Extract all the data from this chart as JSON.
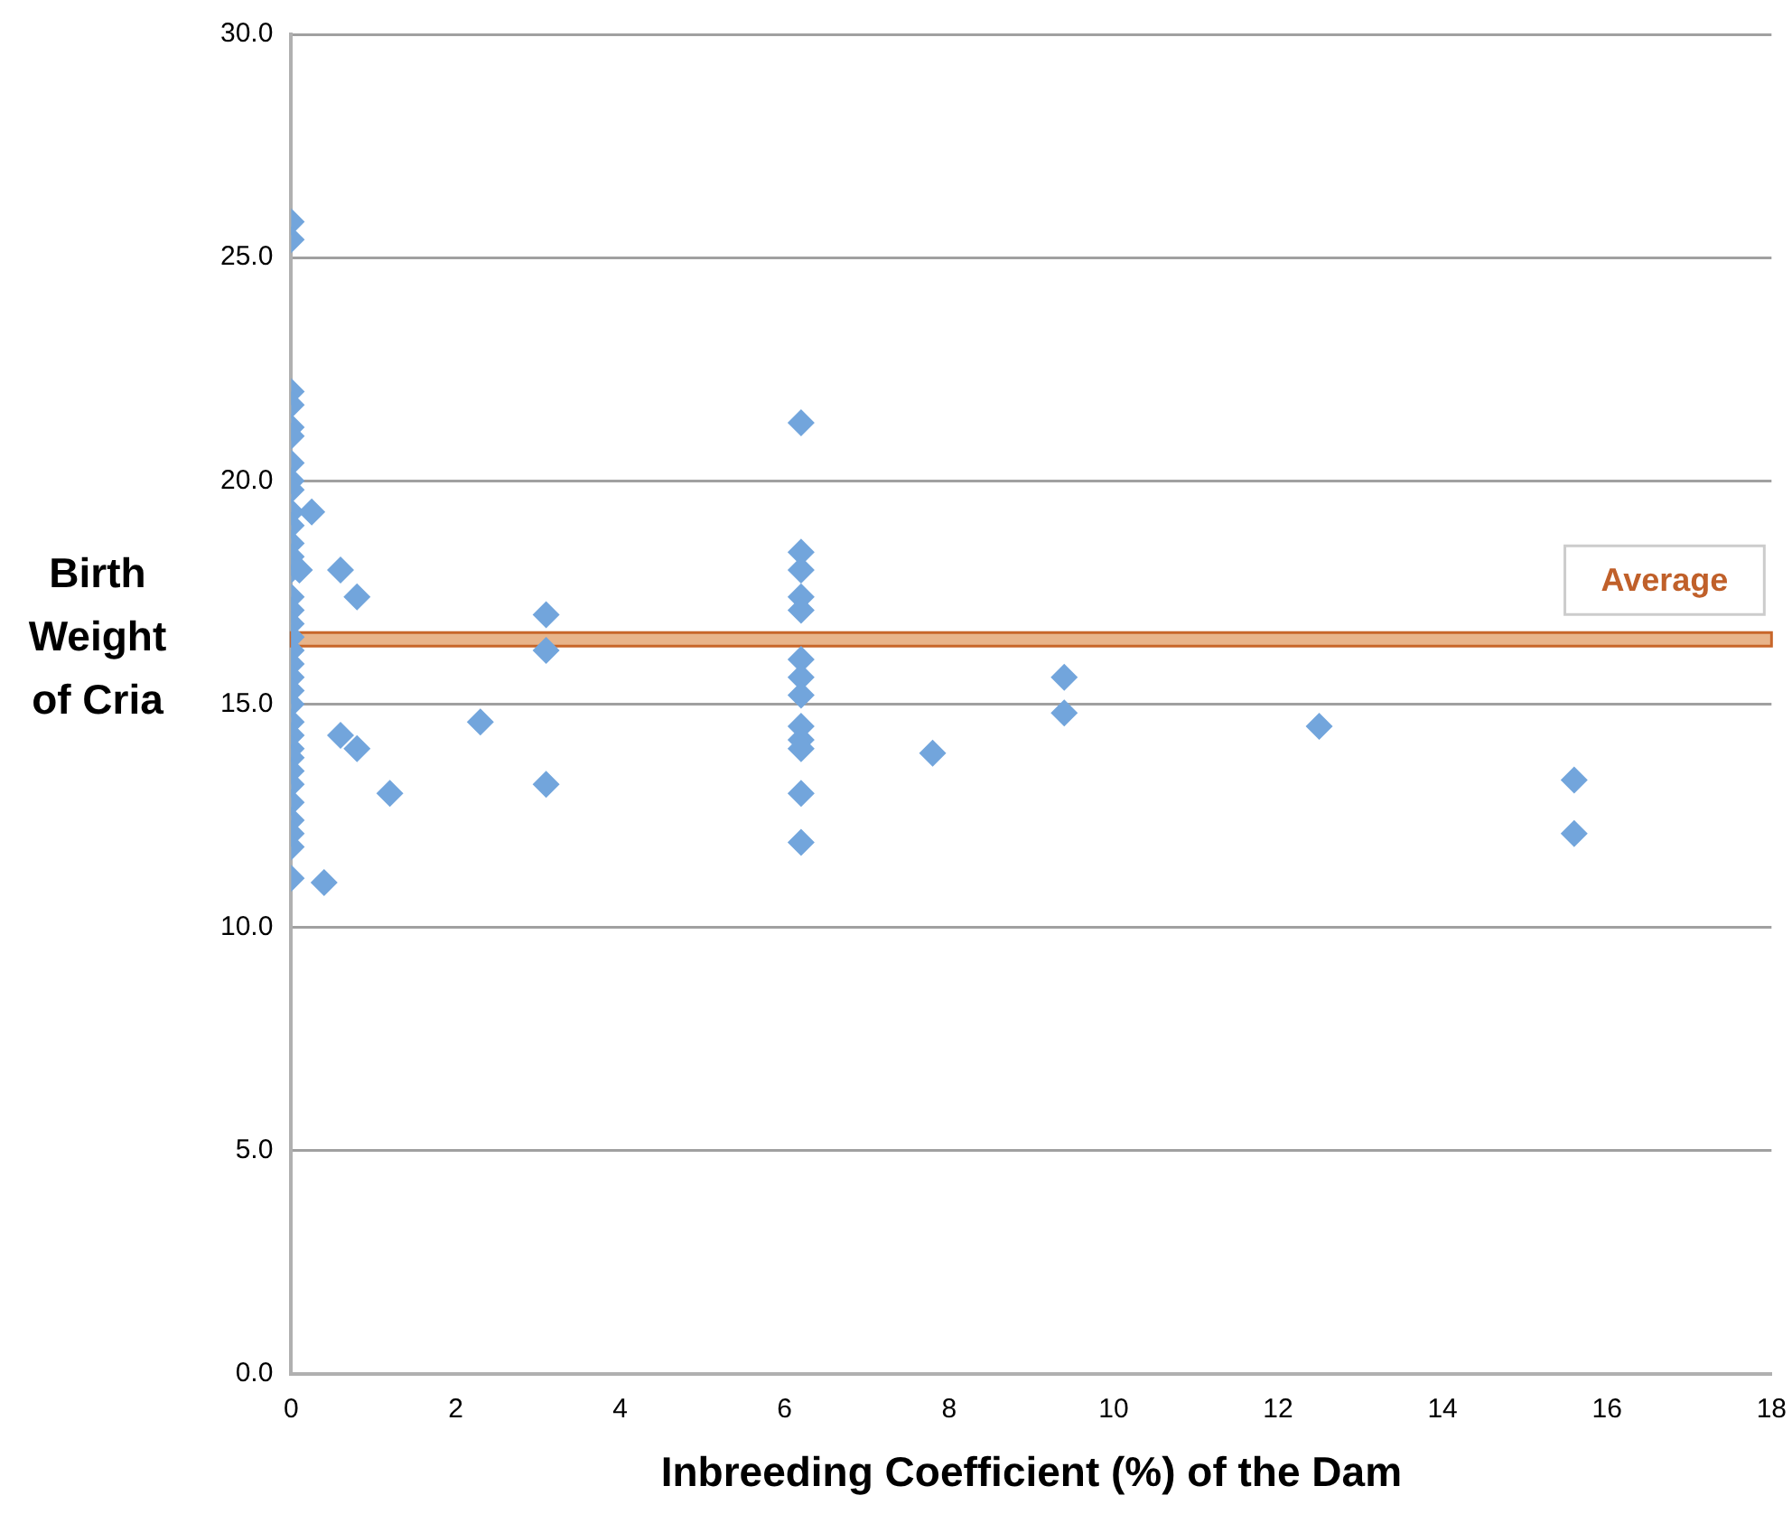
{
  "chart_data": {
    "type": "scatter",
    "xlabel": "Inbreeding Coefficient (%) of the Dam",
    "ylabel": "Birth Weight of Cria",
    "xlim": [
      0,
      18
    ],
    "xticks": [
      0,
      2,
      4,
      6,
      8,
      10,
      12,
      14,
      16,
      18
    ],
    "ylim": [
      0,
      30
    ],
    "yticks": [
      {
        "value": 0,
        "label": "0.0"
      },
      {
        "value": 5,
        "label": "5.0"
      },
      {
        "value": 10,
        "label": "10.0"
      },
      {
        "value": 15,
        "label": "15.0"
      },
      {
        "value": 20,
        "label": "20.0"
      },
      {
        "value": 25,
        "label": "25.0"
      },
      {
        "value": 30,
        "label": "30.0"
      }
    ],
    "grid": "y",
    "marker": "diamond",
    "legend": false,
    "series": [
      {
        "color": "#72a5dc",
        "x": [
          0,
          0,
          0,
          0,
          0,
          0,
          0,
          0,
          0,
          0,
          0,
          0,
          0,
          0,
          0,
          0,
          0,
          0,
          0,
          0,
          0,
          0,
          0,
          0,
          0,
          0,
          0,
          0,
          0,
          0,
          0,
          0,
          0,
          0,
          0.1,
          0.25,
          0.6,
          0.8,
          0.6,
          0.8,
          1.2,
          0.4,
          2.3,
          3.1,
          3.1,
          3.1,
          6.2,
          6.2,
          6.2,
          6.2,
          6.2,
          6.2,
          6.2,
          6.2,
          6.2,
          6.2,
          6.2,
          6.2,
          6.2,
          7.8,
          9.4,
          9.4,
          12.5,
          15.6,
          15.6
        ],
        "values": [
          25.8,
          25.4,
          22.0,
          21.7,
          21.2,
          21.0,
          20.4,
          20.0,
          19.8,
          19.3,
          19.0,
          18.6,
          18.3,
          18.0,
          17.4,
          17.1,
          16.8,
          16.5,
          16.2,
          15.9,
          15.6,
          15.3,
          15.0,
          14.6,
          14.3,
          14.0,
          13.8,
          13.5,
          13.2,
          12.8,
          12.4,
          12.1,
          11.8,
          11.1,
          18.0,
          19.3,
          18.0,
          17.4,
          14.3,
          14.0,
          13.0,
          11.0,
          14.6,
          17.0,
          16.2,
          13.2,
          21.3,
          18.4,
          18.0,
          17.4,
          17.1,
          16.0,
          15.6,
          15.2,
          14.5,
          14.2,
          14.0,
          13.0,
          11.9,
          13.9,
          15.6,
          14.8,
          14.5,
          13.3,
          12.1
        ]
      }
    ],
    "bands": [
      {
        "axis": "y",
        "from": 16.3,
        "to": 16.6,
        "label": "Average",
        "color": "#e8b48a"
      }
    ]
  }
}
